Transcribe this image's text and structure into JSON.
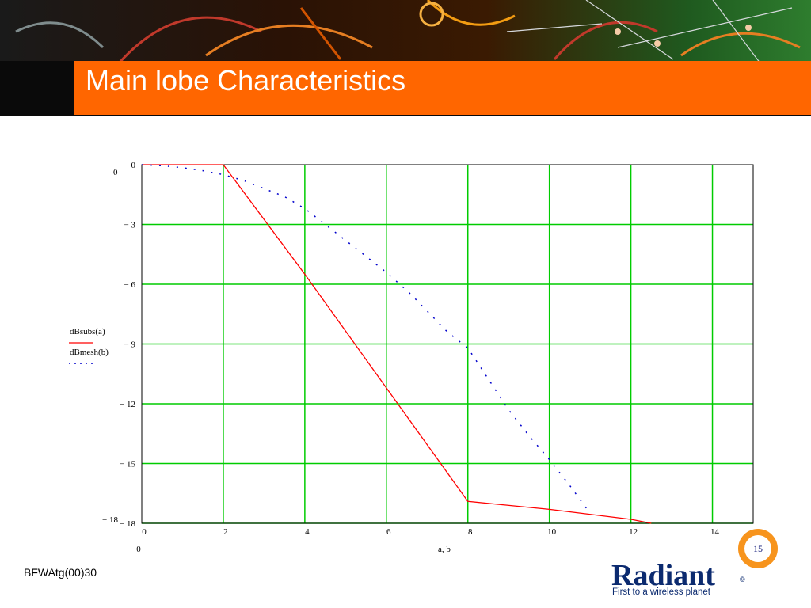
{
  "slide": {
    "title": "Main lobe Characteristics",
    "footer_code": "BFWAtg(00)30",
    "page_number": "15",
    "colors": {
      "title_bar": "#ff6600",
      "banner": "#0a0a0a",
      "grid": "#00cc00",
      "series_a": "#ff0000",
      "series_b": "#0000cc"
    }
  },
  "logo": {
    "word": "Radiant",
    "registered": "©",
    "tagline": "First to a wireless planet"
  },
  "chart_data": {
    "type": "line",
    "xlabel": "a, b",
    "x_min_label": "0",
    "y_top_label": "0",
    "y_bottom_label": "− 18",
    "xlim": [
      0,
      15
    ],
    "ylim": [
      -18,
      0
    ],
    "x_ticks": [
      "0",
      "2",
      "4",
      "6",
      "8",
      "10",
      "12",
      "14"
    ],
    "y_ticks": [
      "0",
      "− 3",
      "− 6",
      "− 9",
      "− 12",
      "− 15",
      "− 18"
    ],
    "x_tick_values": [
      0,
      2,
      4,
      6,
      8,
      10,
      12,
      14
    ],
    "y_tick_values": [
      0,
      -3,
      -6,
      -9,
      -12,
      -15,
      -18
    ],
    "grid": true,
    "legend_position": "left",
    "series": [
      {
        "name": "dBsubs(a)",
        "style": "solid",
        "color": "#ff0000",
        "x": [
          0,
          2,
          4,
          6,
          8,
          10,
          12,
          12.5
        ],
        "y": [
          0,
          0,
          -5.5,
          -11.2,
          -16.9,
          -17.3,
          -17.8,
          -18
        ]
      },
      {
        "name": "dBmesh(b)",
        "style": "dotted",
        "color": "#0000cc",
        "x": [
          0,
          0.5,
          1,
          1.5,
          2,
          2.5,
          3,
          3.5,
          4,
          5,
          6,
          6.6,
          7.5,
          8,
          9,
          9.5,
          10,
          10.5,
          11
        ],
        "y": [
          0,
          -0.05,
          -0.15,
          -0.3,
          -0.5,
          -0.8,
          -1.2,
          -1.6,
          -2.2,
          -3.8,
          -5.4,
          -6.5,
          -8.4,
          -9.2,
          -12.3,
          -13.6,
          -14.8,
          -16.1,
          -17.5
        ]
      }
    ]
  }
}
